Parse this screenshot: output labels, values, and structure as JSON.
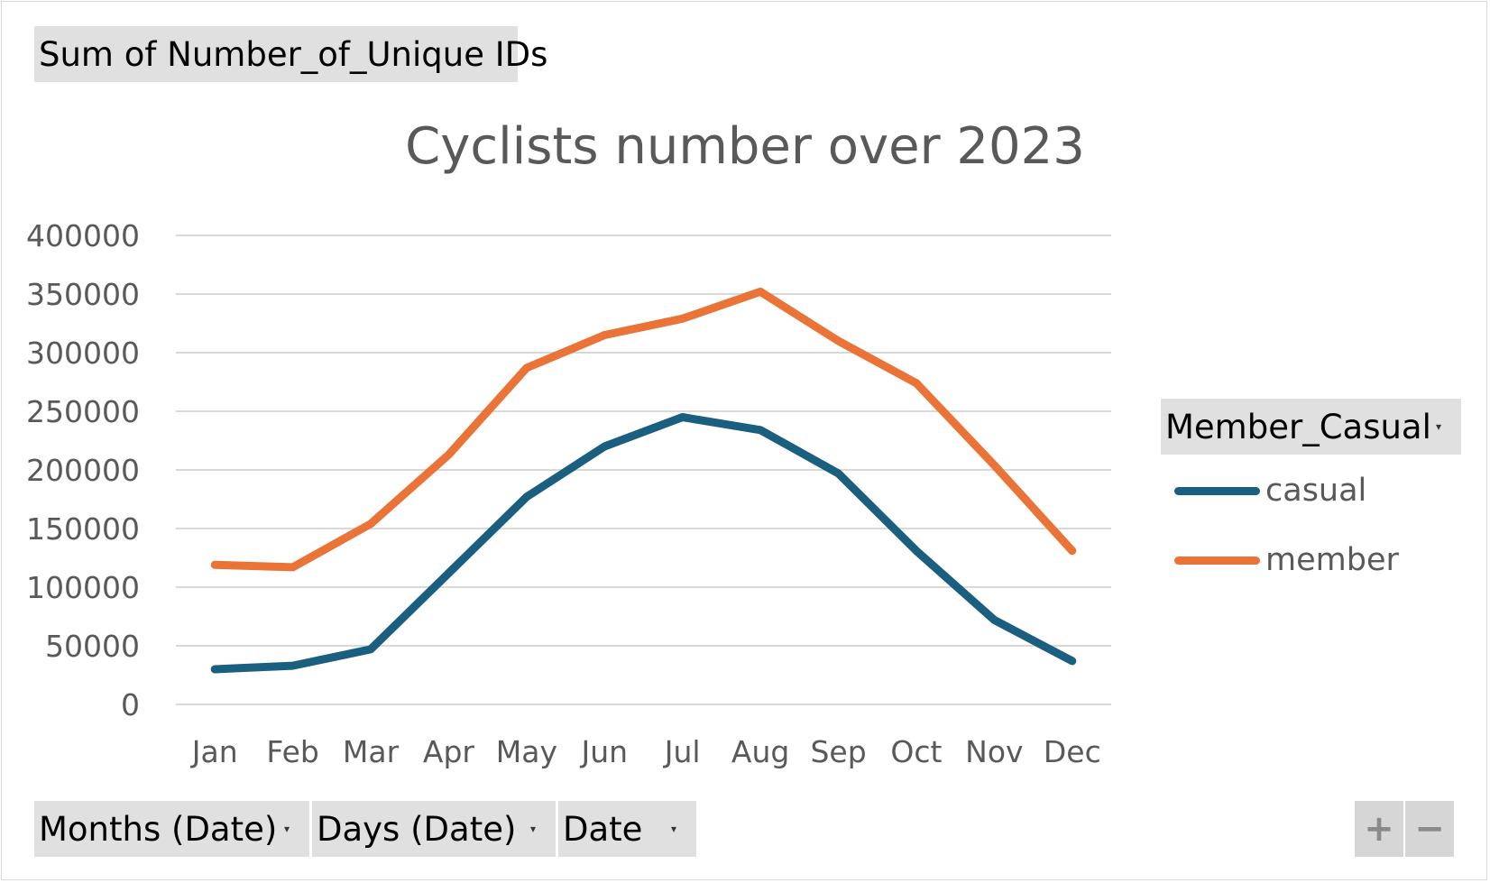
{
  "value_field_button": {
    "label": "Sum of Number_of_Unique IDs"
  },
  "axis_field_buttons": [
    {
      "label": "Months (Date)"
    },
    {
      "label": "Days (Date)"
    },
    {
      "label": "Date"
    }
  ],
  "legend_field_button": {
    "label": "Member_Casual"
  },
  "zoom": {
    "expand_label": "+",
    "collapse_label": "−"
  },
  "chart_data": {
    "type": "line",
    "title": "Cyclists number over 2023",
    "xlabel": "",
    "ylabel": "",
    "categories": [
      "Jan",
      "Feb",
      "Mar",
      "Apr",
      "May",
      "Jun",
      "Jul",
      "Aug",
      "Sep",
      "Oct",
      "Nov",
      "Dec"
    ],
    "ylim": [
      0,
      400000
    ],
    "yticks": [
      "0",
      "50000",
      "100000",
      "150000",
      "200000",
      "250000",
      "300000",
      "350000",
      "400000"
    ],
    "grid": true,
    "legend_position": "right",
    "series": [
      {
        "name": "casual",
        "color": "#1a5f7f",
        "values": [
          30000,
          33000,
          47000,
          112000,
          177000,
          220000,
          245000,
          234000,
          197000,
          131000,
          72000,
          37000
        ]
      },
      {
        "name": "member",
        "color": "#ea7437",
        "values": [
          119000,
          117000,
          154000,
          213000,
          287000,
          315000,
          329000,
          352000,
          310000,
          274000,
          204000,
          131000
        ]
      }
    ]
  }
}
